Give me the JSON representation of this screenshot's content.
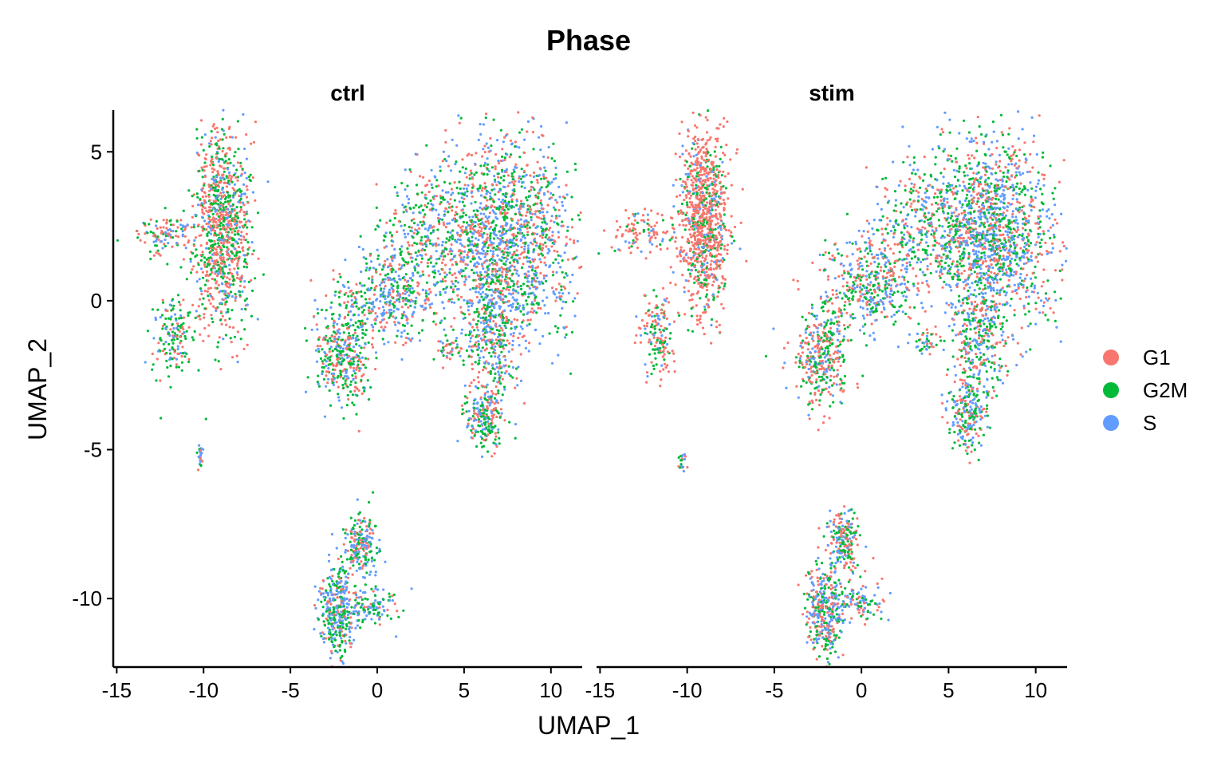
{
  "chart_data": {
    "type": "scatter",
    "title": "Phase",
    "xlabel": "UMAP_1",
    "ylabel": "UMAP_2",
    "xlim": [
      -15.2,
      11.8
    ],
    "ylim": [
      -12.3,
      6.4
    ],
    "x_ticks": [
      -15,
      -10,
      -5,
      0,
      5,
      10
    ],
    "y_ticks": [
      -10,
      -5,
      0,
      5
    ],
    "x_tick_labels": [
      "-15",
      "-10",
      "-5",
      "0",
      "5",
      "10"
    ],
    "y_tick_labels": [
      "-10",
      "-5",
      "0",
      "5"
    ],
    "grid": false,
    "legend": "right",
    "panels": [
      "ctrl",
      "stim"
    ],
    "series": [
      {
        "name": "G1",
        "color": "#F8766D"
      },
      {
        "name": "G2M",
        "color": "#00BA38"
      },
      {
        "name": "S",
        "color": "#619CFF"
      }
    ],
    "clusters": [
      {
        "panel": "ctrl",
        "cx": -8.9,
        "cy": 2.4,
        "sx": 0.8,
        "sy": 1.7,
        "n": 950,
        "mix": [
          0.45,
          0.35,
          0.2
        ]
      },
      {
        "panel": "ctrl",
        "cx": -12.0,
        "cy": 2.2,
        "sx": 1.0,
        "sy": 0.35,
        "n": 120,
        "mix": [
          0.5,
          0.25,
          0.25
        ]
      },
      {
        "panel": "ctrl",
        "cx": -11.7,
        "cy": -1.2,
        "sx": 0.6,
        "sy": 0.7,
        "n": 160,
        "mix": [
          0.2,
          0.6,
          0.2
        ]
      },
      {
        "panel": "ctrl",
        "cx": -10.2,
        "cy": -5.3,
        "sx": 0.1,
        "sy": 0.25,
        "n": 25,
        "mix": [
          0.3,
          0.3,
          0.4
        ]
      },
      {
        "panel": "ctrl",
        "cx": 7.4,
        "cy": 2.0,
        "sx": 1.9,
        "sy": 1.7,
        "n": 1500,
        "mix": [
          0.3,
          0.32,
          0.38
        ]
      },
      {
        "panel": "ctrl",
        "cx": 3.2,
        "cy": 2.4,
        "sx": 1.3,
        "sy": 1.1,
        "n": 320,
        "mix": [
          0.3,
          0.4,
          0.3
        ]
      },
      {
        "panel": "ctrl",
        "cx": 0.6,
        "cy": 0.3,
        "sx": 1.3,
        "sy": 0.8,
        "n": 420,
        "mix": [
          0.25,
          0.35,
          0.4
        ]
      },
      {
        "panel": "ctrl",
        "cx": -2.0,
        "cy": -1.8,
        "sx": 0.8,
        "sy": 0.9,
        "n": 380,
        "mix": [
          0.3,
          0.45,
          0.25
        ]
      },
      {
        "panel": "ctrl",
        "cx": 6.6,
        "cy": -1.2,
        "sx": 0.7,
        "sy": 1.0,
        "n": 280,
        "mix": [
          0.3,
          0.35,
          0.35
        ]
      },
      {
        "panel": "ctrl",
        "cx": 6.2,
        "cy": -3.9,
        "sx": 0.6,
        "sy": 0.6,
        "n": 220,
        "mix": [
          0.3,
          0.45,
          0.25
        ]
      },
      {
        "panel": "ctrl",
        "cx": 4.2,
        "cy": -1.6,
        "sx": 0.5,
        "sy": 0.25,
        "n": 45,
        "mix": [
          0.3,
          0.4,
          0.3
        ]
      },
      {
        "panel": "ctrl",
        "cx": -1.0,
        "cy": -8.2,
        "sx": 0.5,
        "sy": 0.5,
        "n": 200,
        "mix": [
          0.25,
          0.35,
          0.4
        ]
      },
      {
        "panel": "ctrl",
        "cx": -2.3,
        "cy": -10.4,
        "sx": 0.5,
        "sy": 0.8,
        "n": 360,
        "mix": [
          0.2,
          0.35,
          0.45
        ]
      },
      {
        "panel": "ctrl",
        "cx": -0.3,
        "cy": -10.3,
        "sx": 0.7,
        "sy": 0.3,
        "n": 110,
        "mix": [
          0.2,
          0.4,
          0.4
        ]
      },
      {
        "panel": "ctrl",
        "cx": 10.6,
        "cy": 0.1,
        "sx": 0.1,
        "sy": 0.15,
        "n": 6,
        "mix": [
          0.2,
          0.2,
          0.6
        ]
      },
      {
        "panel": "stim",
        "cx": -9.0,
        "cy": 2.7,
        "sx": 0.7,
        "sy": 1.5,
        "n": 950,
        "mix": [
          0.7,
          0.2,
          0.1
        ]
      },
      {
        "panel": "stim",
        "cx": -12.5,
        "cy": 2.3,
        "sx": 1.0,
        "sy": 0.35,
        "n": 110,
        "mix": [
          0.7,
          0.15,
          0.15
        ]
      },
      {
        "panel": "stim",
        "cx": -11.7,
        "cy": -1.1,
        "sx": 0.5,
        "sy": 0.7,
        "n": 150,
        "mix": [
          0.5,
          0.35,
          0.15
        ]
      },
      {
        "panel": "stim",
        "cx": -10.3,
        "cy": -5.4,
        "sx": 0.1,
        "sy": 0.2,
        "n": 20,
        "mix": [
          0.3,
          0.3,
          0.4
        ]
      },
      {
        "panel": "stim",
        "cx": 7.4,
        "cy": 2.2,
        "sx": 1.8,
        "sy": 1.6,
        "n": 1500,
        "mix": [
          0.3,
          0.3,
          0.4
        ]
      },
      {
        "panel": "stim",
        "cx": 3.5,
        "cy": 2.6,
        "sx": 1.4,
        "sy": 1.1,
        "n": 320,
        "mix": [
          0.3,
          0.4,
          0.3
        ]
      },
      {
        "panel": "stim",
        "cx": 0.6,
        "cy": 0.6,
        "sx": 1.4,
        "sy": 0.8,
        "n": 420,
        "mix": [
          0.3,
          0.35,
          0.35
        ]
      },
      {
        "panel": "stim",
        "cx": -2.2,
        "cy": -1.8,
        "sx": 0.8,
        "sy": 0.9,
        "n": 380,
        "mix": [
          0.45,
          0.35,
          0.2
        ]
      },
      {
        "panel": "stim",
        "cx": 6.7,
        "cy": -1.4,
        "sx": 0.7,
        "sy": 1.0,
        "n": 260,
        "mix": [
          0.3,
          0.35,
          0.35
        ]
      },
      {
        "panel": "stim",
        "cx": 6.0,
        "cy": -3.8,
        "sx": 0.6,
        "sy": 0.6,
        "n": 220,
        "mix": [
          0.3,
          0.35,
          0.35
        ]
      },
      {
        "panel": "stim",
        "cx": 3.8,
        "cy": -1.4,
        "sx": 0.5,
        "sy": 0.25,
        "n": 45,
        "mix": [
          0.35,
          0.35,
          0.3
        ]
      },
      {
        "panel": "stim",
        "cx": -1.0,
        "cy": -8.1,
        "sx": 0.4,
        "sy": 0.5,
        "n": 200,
        "mix": [
          0.35,
          0.35,
          0.3
        ]
      },
      {
        "panel": "stim",
        "cx": -2.1,
        "cy": -10.5,
        "sx": 0.5,
        "sy": 0.8,
        "n": 360,
        "mix": [
          0.3,
          0.3,
          0.4
        ]
      },
      {
        "panel": "stim",
        "cx": -0.2,
        "cy": -10.2,
        "sx": 0.7,
        "sy": 0.3,
        "n": 110,
        "mix": [
          0.25,
          0.35,
          0.4
        ]
      },
      {
        "panel": "stim",
        "cx": 10.5,
        "cy": 0.1,
        "sx": 0.1,
        "sy": 0.1,
        "n": 4,
        "mix": [
          0.5,
          0.3,
          0.2
        ]
      }
    ]
  }
}
